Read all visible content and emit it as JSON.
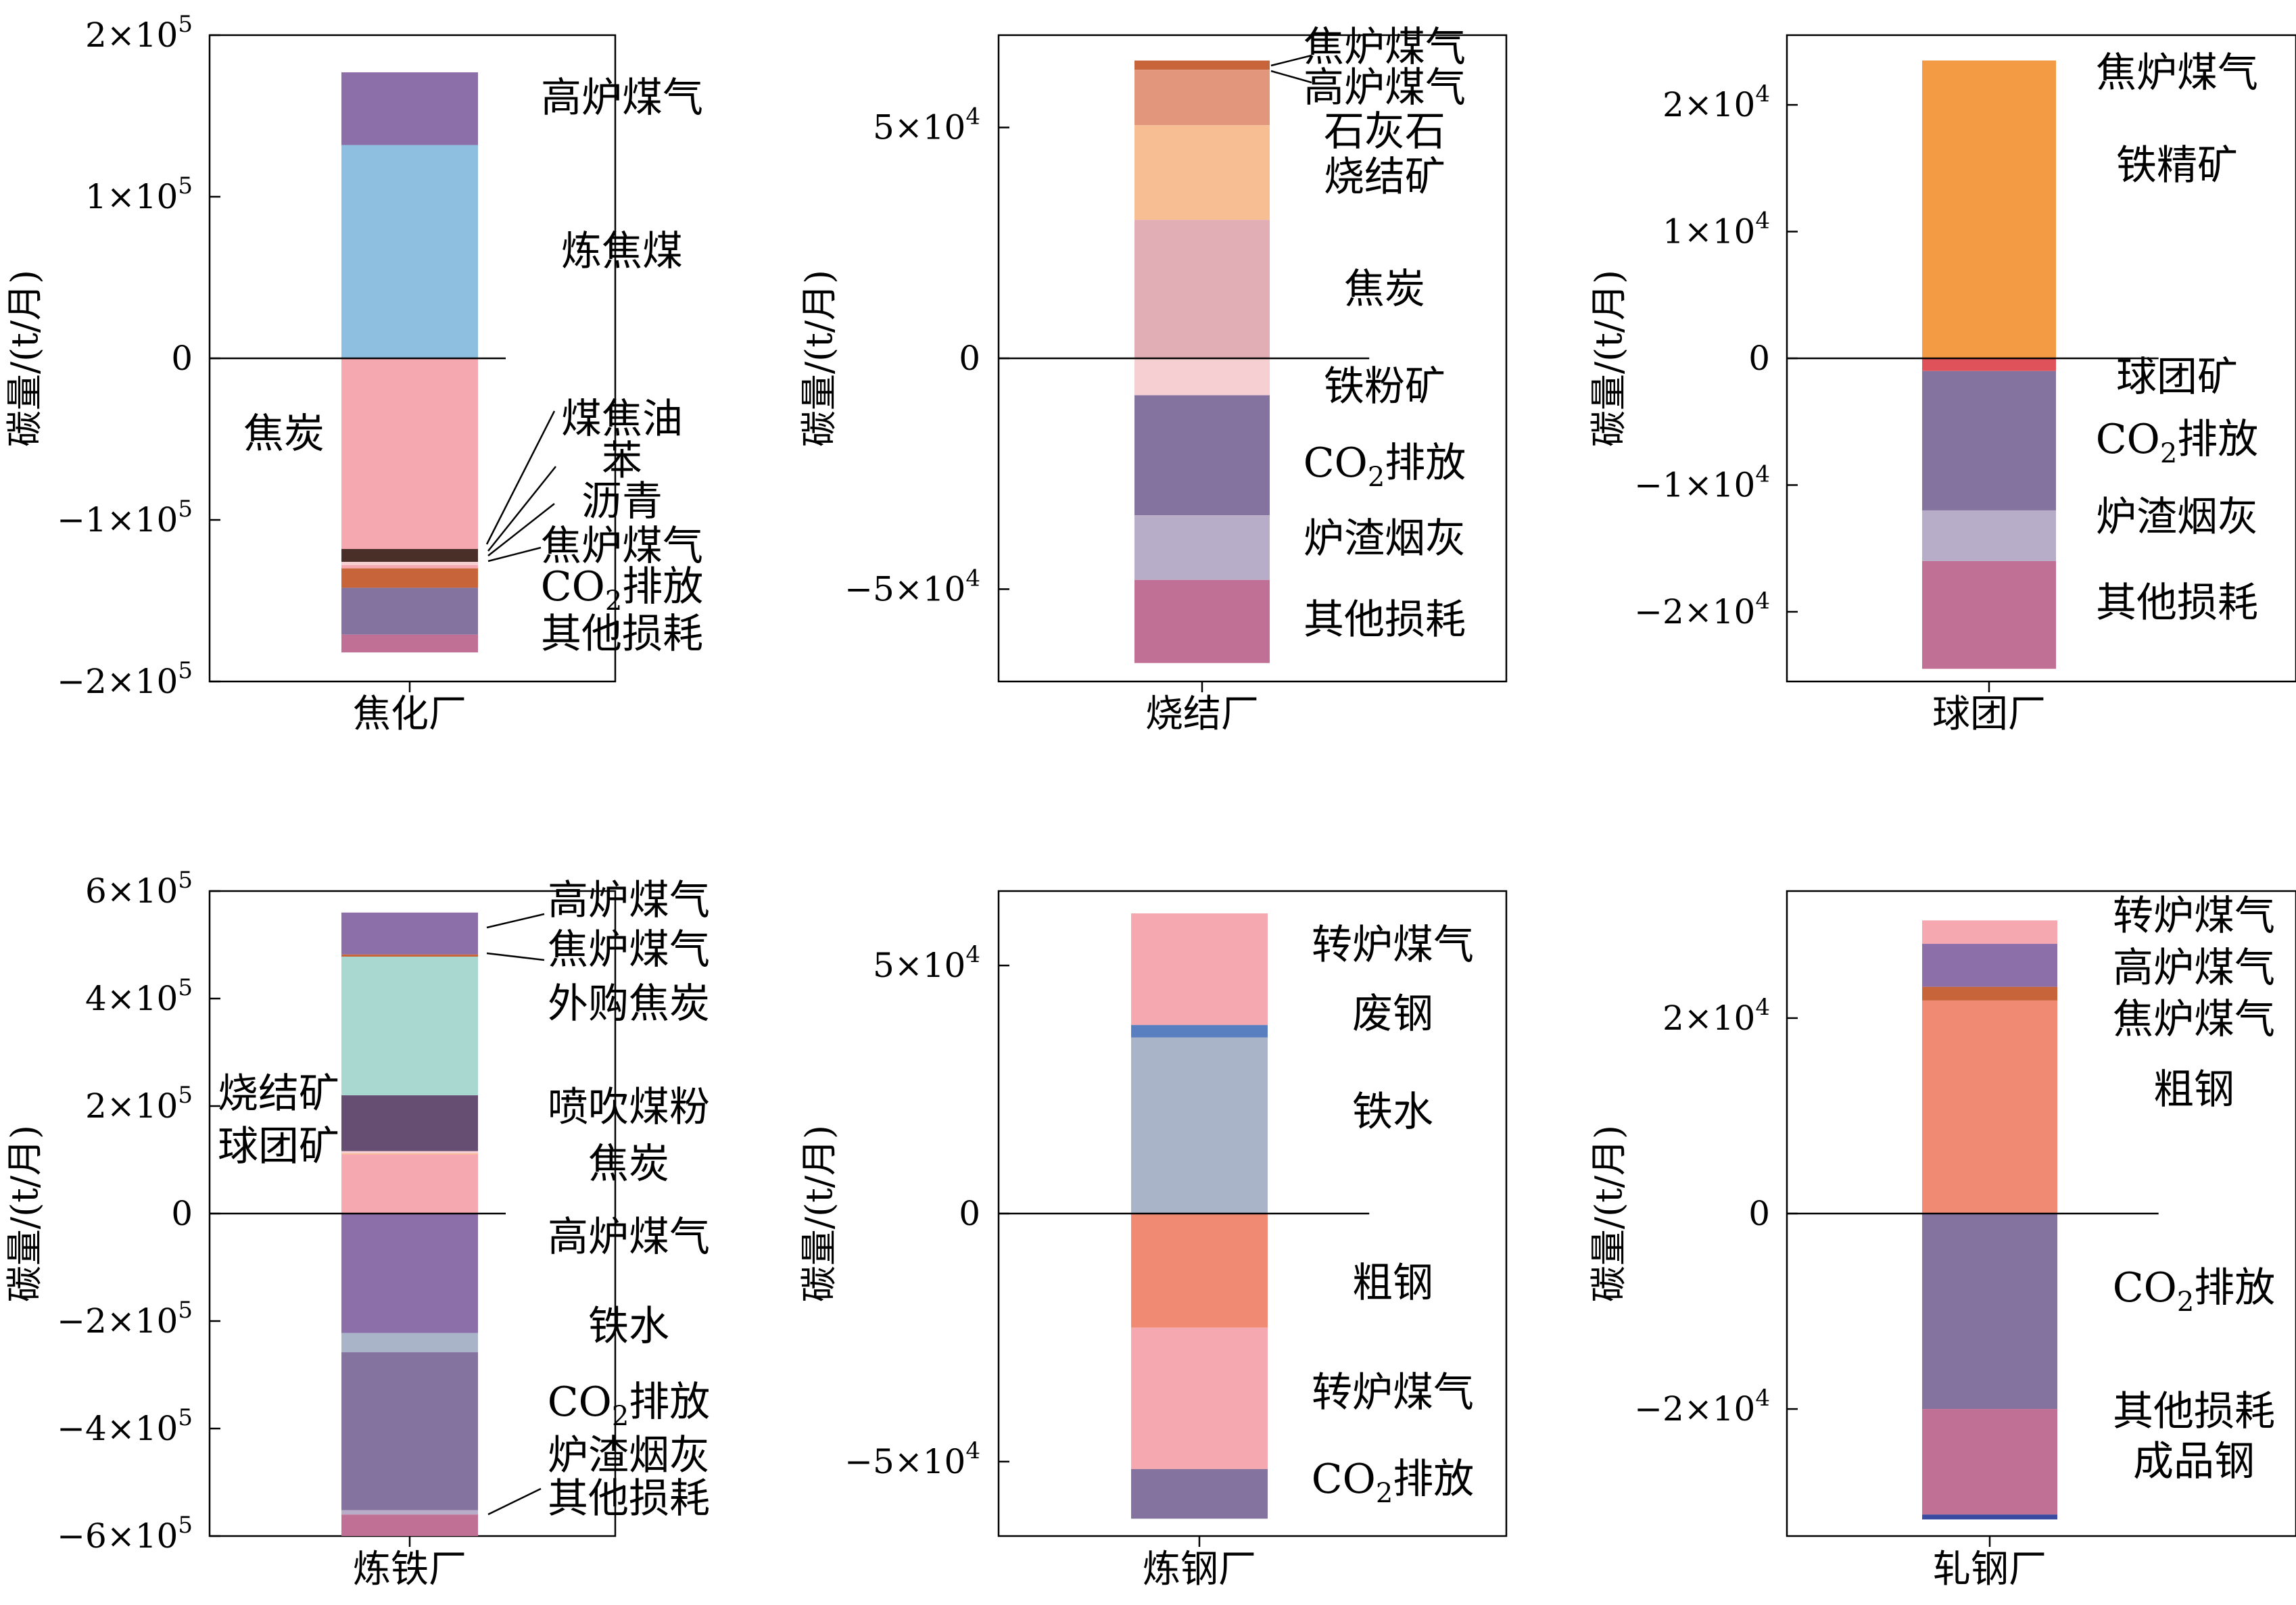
{
  "colors": {
    "purple": "#8c6fa8",
    "blue": "#8fbfe0",
    "pink": "#f5a8b0",
    "dark_brown": "#4a2f28",
    "orange_brown": "#c8643a",
    "light_pink": "#f6cfd3",
    "dusty_pink": "#e0aeb4",
    "salmon": "#e2977c",
    "peach": "#f7be93",
    "slate_purple": "#84739f",
    "lavender": "#b7adc9",
    "mauve": "#c07094",
    "orange": "#f39a44",
    "red": "#e0525a",
    "teal": "#a8d8d0",
    "dark_purple": "#654e72",
    "gray_blue": "#aab4c8",
    "blue_band": "#5a7fc0",
    "coral": "#f08a72",
    "dark_blue": "#3a4aa0"
  },
  "chart_data": [
    {
      "id": "coking",
      "type": "bar",
      "stacked": true,
      "category": "焦化厂",
      "ylabel": "碳量/(t/月)",
      "ylim": [
        -200000,
        200000
      ],
      "ticks": [
        {
          "value": 200000,
          "mant": "2×10",
          "exp": "5"
        },
        {
          "value": 100000,
          "mant": "1×10",
          "exp": "5"
        },
        {
          "value": 0,
          "mant": "0",
          "exp": ""
        },
        {
          "value": -100000,
          "mant": "−1×10",
          "exp": "5"
        },
        {
          "value": -200000,
          "mant": "−2×10",
          "exp": "5"
        }
      ],
      "segments": [
        {
          "name": "高炉煤气",
          "from": 132000,
          "to": 177000,
          "color": "purple"
        },
        {
          "name": "炼焦煤",
          "from": 0,
          "to": 132000,
          "color": "blue"
        },
        {
          "name": "焦炭",
          "from": -118000,
          "to": 0,
          "color": "pink"
        },
        {
          "name": "煤焦油",
          "from": -126000,
          "to": -118000,
          "color": "dark_brown"
        },
        {
          "name": "苯",
          "from": -128000,
          "to": -126000,
          "color": "light_pink"
        },
        {
          "name": "沥青",
          "from": -130000,
          "to": -128000,
          "color": "pink"
        },
        {
          "name": "焦炉煤气",
          "from": -142000,
          "to": -130000,
          "color": "orange_brown"
        },
        {
          "name": "CO2排放",
          "from": -171000,
          "to": -142000,
          "color": "slate_purple"
        },
        {
          "name": "其他损耗",
          "from": -182000,
          "to": -171000,
          "color": "mauve"
        }
      ]
    },
    {
      "id": "sintering",
      "type": "bar",
      "stacked": true,
      "category": "烧结厂",
      "ylabel": "碳量/(t/月)",
      "ylim": [
        -70000,
        70000
      ],
      "ticks": [
        {
          "value": 50000,
          "mant": "5×10",
          "exp": "4"
        },
        {
          "value": 0,
          "mant": "0",
          "exp": ""
        },
        {
          "value": -50000,
          "mant": "−5×10",
          "exp": "4"
        }
      ],
      "segments": [
        {
          "name": "焦炉煤气",
          "from": 62500,
          "to": 64500,
          "color": "orange_brown"
        },
        {
          "name": "高炉煤气",
          "from": 50500,
          "to": 62500,
          "color": "salmon"
        },
        {
          "name": "石灰石",
          "from": 30000,
          "to": 50500,
          "color": "peach"
        },
        {
          "name": "焦炭",
          "from": 0,
          "to": 30000,
          "color": "dusty_pink"
        },
        {
          "name": "铁粉矿",
          "from": -8000,
          "to": 0,
          "color": "light_pink"
        },
        {
          "name": "CO2排放",
          "from": -34000,
          "to": -8000,
          "color": "slate_purple"
        },
        {
          "name": "炉渣烟灰",
          "from": -48000,
          "to": -34000,
          "color": "lavender"
        },
        {
          "name": "其他损耗",
          "from": -66000,
          "to": -48000,
          "color": "mauve"
        }
      ],
      "extra_labels": [
        "烧结矿"
      ]
    },
    {
      "id": "pellet",
      "type": "bar",
      "stacked": true,
      "category": "球团厂",
      "ylabel": "碳量/(t/月)",
      "ylim": [
        -25500,
        25500
      ],
      "ticks": [
        {
          "value": 20000,
          "mant": "2×10",
          "exp": "4"
        },
        {
          "value": 10000,
          "mant": "1×10",
          "exp": "4"
        },
        {
          "value": 0,
          "mant": "0",
          "exp": ""
        },
        {
          "value": -10000,
          "mant": "−1×10",
          "exp": "4"
        },
        {
          "value": -20000,
          "mant": "−2×10",
          "exp": "4"
        }
      ],
      "segments": [
        {
          "name": "焦炉煤气",
          "from": 0,
          "to": 23500,
          "color": "orange"
        },
        {
          "name": "铁精矿",
          "from": -1000,
          "to": 0,
          "color": "red"
        },
        {
          "name": "CO2排放",
          "from": -12000,
          "to": -1000,
          "color": "slate_purple"
        },
        {
          "name": "炉渣烟灰",
          "from": -16000,
          "to": -12000,
          "color": "lavender"
        },
        {
          "name": "其他损耗",
          "from": -24500,
          "to": -16000,
          "color": "mauve"
        }
      ],
      "extra_labels": [
        "球团矿"
      ]
    },
    {
      "id": "ironmaking",
      "type": "bar",
      "stacked": true,
      "category": "炼铁厂",
      "ylabel": "碳量/(t/月)",
      "ylim": [
        -600000,
        600000
      ],
      "ticks": [
        {
          "value": 600000,
          "mant": "6×10",
          "exp": "5"
        },
        {
          "value": 400000,
          "mant": "4×10",
          "exp": "5"
        },
        {
          "value": 200000,
          "mant": "2×10",
          "exp": "5"
        },
        {
          "value": 0,
          "mant": "0",
          "exp": ""
        },
        {
          "value": -200000,
          "mant": "−2×10",
          "exp": "5"
        },
        {
          "value": -400000,
          "mant": "−4×10",
          "exp": "5"
        },
        {
          "value": -600000,
          "mant": "−6×10",
          "exp": "5"
        }
      ],
      "segments": [
        {
          "name": "高炉煤气",
          "from": 482000,
          "to": 560000,
          "color": "purple"
        },
        {
          "name": "焦炉煤气",
          "from": 478000,
          "to": 482000,
          "color": "orange_brown"
        },
        {
          "name": "外购焦炭",
          "from": 220000,
          "to": 478000,
          "color": "teal"
        },
        {
          "name": "喷吹煤粉",
          "from": 116000,
          "to": 220000,
          "color": "dark_purple"
        },
        {
          "name": "烧结矿",
          "from": 112000,
          "to": 116000,
          "color": "light_pink"
        },
        {
          "name": "球团矿",
          "from": 110000,
          "to": 112000,
          "color": "peach"
        },
        {
          "name": "焦炭",
          "from": 0,
          "to": 110000,
          "color": "pink"
        },
        {
          "name": "高炉煤气",
          "from": -222000,
          "to": 0,
          "color": "purple"
        },
        {
          "name": "铁水",
          "from": -258000,
          "to": -222000,
          "color": "gray_blue"
        },
        {
          "name": "CO2排放",
          "from": -552000,
          "to": -258000,
          "color": "slate_purple"
        },
        {
          "name": "炉渣烟灰",
          "from": -560000,
          "to": -552000,
          "color": "lavender"
        },
        {
          "name": "其他损耗",
          "from": -600000,
          "to": -560000,
          "color": "mauve"
        }
      ]
    },
    {
      "id": "steelmaking",
      "type": "bar",
      "stacked": true,
      "category": "炼钢厂",
      "ylabel": "碳量/(t/月)",
      "ylim": [
        -65000,
        65000
      ],
      "ticks": [
        {
          "value": 50000,
          "mant": "5×10",
          "exp": "4"
        },
        {
          "value": 0,
          "mant": "0",
          "exp": ""
        },
        {
          "value": -50000,
          "mant": "−5×10",
          "exp": "4"
        }
      ],
      "segments": [
        {
          "name": "转炉煤气",
          "from": 38000,
          "to": 60500,
          "color": "pink"
        },
        {
          "name": "废钢",
          "from": 35500,
          "to": 38000,
          "color": "blue_band"
        },
        {
          "name": "铁水",
          "from": 0,
          "to": 35500,
          "color": "gray_blue"
        },
        {
          "name": "粗钢",
          "from": -23000,
          "to": 0,
          "color": "coral"
        },
        {
          "name": "转炉煤气",
          "from": -51500,
          "to": -23000,
          "color": "pink"
        },
        {
          "name": "CO2排放",
          "from": -61500,
          "to": -51500,
          "color": "slate_purple"
        }
      ]
    },
    {
      "id": "rolling",
      "type": "bar",
      "stacked": true,
      "category": "轧钢厂",
      "ylabel": "碳量/(t/月)",
      "ylim": [
        -33000,
        33000
      ],
      "ticks": [
        {
          "value": 20000,
          "mant": "2×10",
          "exp": "4"
        },
        {
          "value": 0,
          "mant": "0",
          "exp": ""
        },
        {
          "value": -20000,
          "mant": "−2×10",
          "exp": "4"
        }
      ],
      "segments": [
        {
          "name": "转炉煤气",
          "from": 27600,
          "to": 30000,
          "color": "pink"
        },
        {
          "name": "高炉煤气",
          "from": 23200,
          "to": 27600,
          "color": "purple"
        },
        {
          "name": "焦炉煤气",
          "from": 21800,
          "to": 23200,
          "color": "orange_brown"
        },
        {
          "name": "粗钢",
          "from": 0,
          "to": 21800,
          "color": "coral"
        },
        {
          "name": "CO2排放",
          "from": -20000,
          "to": 0,
          "color": "slate_purple"
        },
        {
          "name": "其他损耗",
          "from": -30800,
          "to": -20000,
          "color": "mauve"
        },
        {
          "name": "成品钢",
          "from": -31300,
          "to": -30800,
          "color": "dark_blue"
        }
      ]
    }
  ]
}
